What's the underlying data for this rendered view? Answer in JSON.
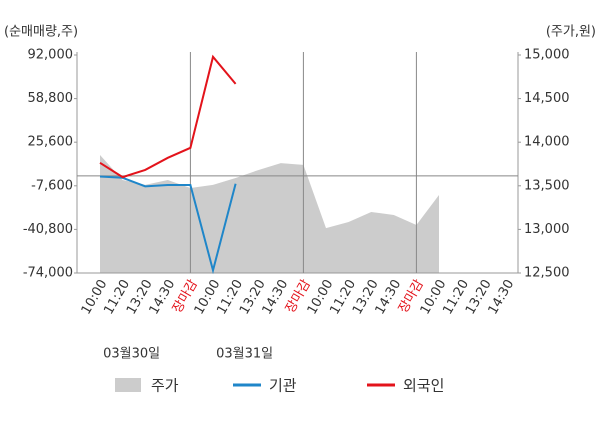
{
  "chart_data": {
    "type": "line",
    "y_label": "(순매매량,주)",
    "y2_label": "(주가,원)",
    "categories": [
      "10:00",
      "11:20",
      "13:20",
      "14:30",
      "장마감",
      "10:00",
      "11:20",
      "13:20",
      "14:30",
      "장마감",
      "10:00",
      "11:20",
      "13:20",
      "14:30",
      "장마감",
      "10:00",
      "11:20",
      "13:20",
      "14:30"
    ],
    "dates": [
      "03월30일",
      "03월31일"
    ],
    "series": [
      {
        "name": "주가",
        "type": "area",
        "axis": "y2",
        "color": "#cccccc",
        "values": [
          13853,
          13567,
          13510,
          13567,
          13475,
          13510,
          13590,
          13680,
          13760,
          13740,
          13015,
          13085,
          13200,
          13165,
          13050,
          13395,
          null,
          null,
          null
        ]
      },
      {
        "name": "기관",
        "type": "line",
        "color": "#1f86c9",
        "values": [
          -500,
          -1500,
          -8000,
          -7000,
          -7000,
          -72000,
          -6000,
          null,
          null,
          null,
          null,
          null,
          null,
          null,
          null,
          null,
          null,
          null,
          null
        ]
      },
      {
        "name": "외국인",
        "type": "line",
        "color": "#e3131b",
        "values": [
          9900,
          -1000,
          4500,
          13700,
          21300,
          90600,
          70000,
          null,
          null,
          null,
          null,
          null,
          null,
          null,
          null,
          null,
          null,
          null,
          null
        ]
      }
    ],
    "ylim": [
      -74000,
      92000
    ],
    "yticks": [
      {
        "value": -74000,
        "label": "-74,000"
      },
      {
        "value": -40800,
        "label": "-40,800"
      },
      {
        "value": -7600,
        "label": "-7,600"
      },
      {
        "value": 25600,
        "label": "25,600"
      },
      {
        "value": 58800,
        "label": "58,800"
      },
      {
        "value": 92000,
        "label": "92,000"
      }
    ],
    "y2lim": [
      12500,
      15000
    ],
    "y2ticks": [
      {
        "value": 12500,
        "label": "12,500"
      },
      {
        "value": 13000,
        "label": "13,000"
      },
      {
        "value": 13500,
        "label": "13,500"
      },
      {
        "value": 14000,
        "label": "14,000"
      },
      {
        "value": 14500,
        "label": "14,500"
      },
      {
        "value": 15000,
        "label": "15,000"
      }
    ],
    "close_label_color": "#e3131b"
  }
}
